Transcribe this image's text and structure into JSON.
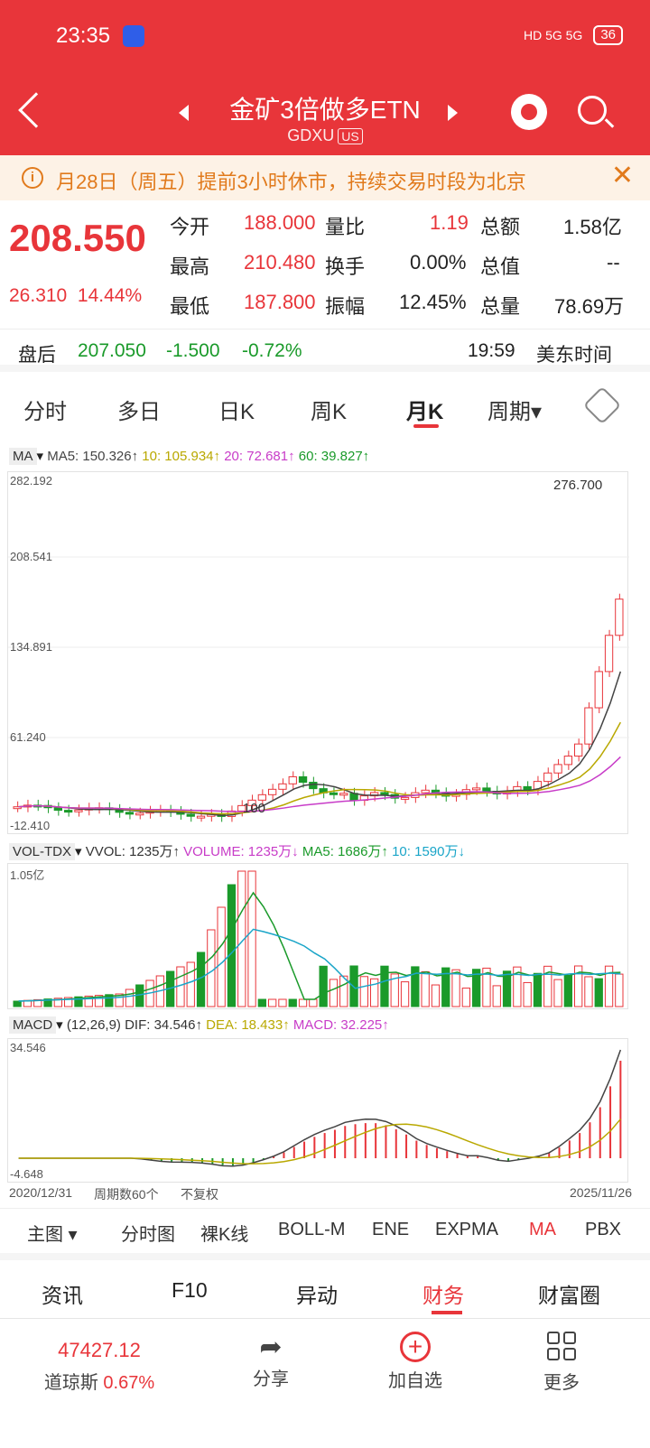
{
  "status_bar": {
    "time": "23:35",
    "network": "HD 5G 5G",
    "battery": "36"
  },
  "header": {
    "title": "金矿3倍做多ETN",
    "ticker": "GDXU",
    "market": "US"
  },
  "notice": {
    "text": "月28日（周五）提前3小时休市，持续交易时段为北京",
    "icon": "info-icon"
  },
  "quote": {
    "last": "208.550",
    "change": "26.310",
    "change_pct": "14.44%",
    "rows": [
      {
        "k1": "今开",
        "v1": "188.000",
        "k2": "量比",
        "v2": "1.19",
        "k3": "总额",
        "v3": "1.58亿"
      },
      {
        "k1": "最高",
        "v1": "210.480",
        "k2": "换手",
        "v2": "0.00%",
        "k3": "总值",
        "v3": "--"
      },
      {
        "k1": "最低",
        "v1": "187.800",
        "k2": "振幅",
        "v2": "12.45%",
        "k3": "总量",
        "v3": "78.69万"
      }
    ]
  },
  "after_hours": {
    "label": "盘后",
    "price": "207.050",
    "change": "-1.500",
    "change_pct": "-0.72%",
    "time": "19:59",
    "tz": "美东时间"
  },
  "tabs": [
    "分时",
    "多日",
    "日K",
    "周K",
    "月K",
    "周期▾"
  ],
  "ma_legend": {
    "selector": "MA",
    "ma5": "MA5: 150.326↑",
    "ma10": "10: 105.934↑",
    "ma20": "20: 72.681↑",
    "ma60": "60: 39.827↑"
  },
  "vol_legend": {
    "selector": "VOL-TDX",
    "vvol": "VVOL: 1235万↑",
    "volume": "VOLUME: 1235万↓",
    "ma5": "MA5: 1686万↑",
    "ma10": "10: 1590万↓"
  },
  "macd_legend": {
    "selector": "MACD",
    "params": "(12,26,9)",
    "dif": "DIF: 34.546↑",
    "dea": "DEA: 18.433↑",
    "macd": "MACD: 32.225↑"
  },
  "chart_data": {
    "type": "candlestick",
    "price_axis": [
      "282.192",
      "208.541",
      "134.891",
      "61.240",
      "-12.410"
    ],
    "high_label": "276.700",
    "low_label": "100",
    "vol_axis_top": "1.05亿",
    "macd_axis": [
      "34.546",
      "-4.648"
    ],
    "start_date": "2020/12/31",
    "end_date": "2025/11/26",
    "period_count": "周期数60个",
    "adjust": "不复权"
  },
  "bottom_indicators": [
    "主图",
    "分时图",
    "裸K线",
    "BOLL-M",
    "ENE",
    "EXPMA",
    "MA",
    "PBX"
  ],
  "sections": [
    "资讯",
    "F10",
    "异动",
    "财务",
    "财富圈"
  ],
  "nav": {
    "index_value": "47427.12",
    "index_name": "道琼斯",
    "index_change": "0.67%",
    "share": "分享",
    "add": "加自选",
    "more": "更多"
  }
}
